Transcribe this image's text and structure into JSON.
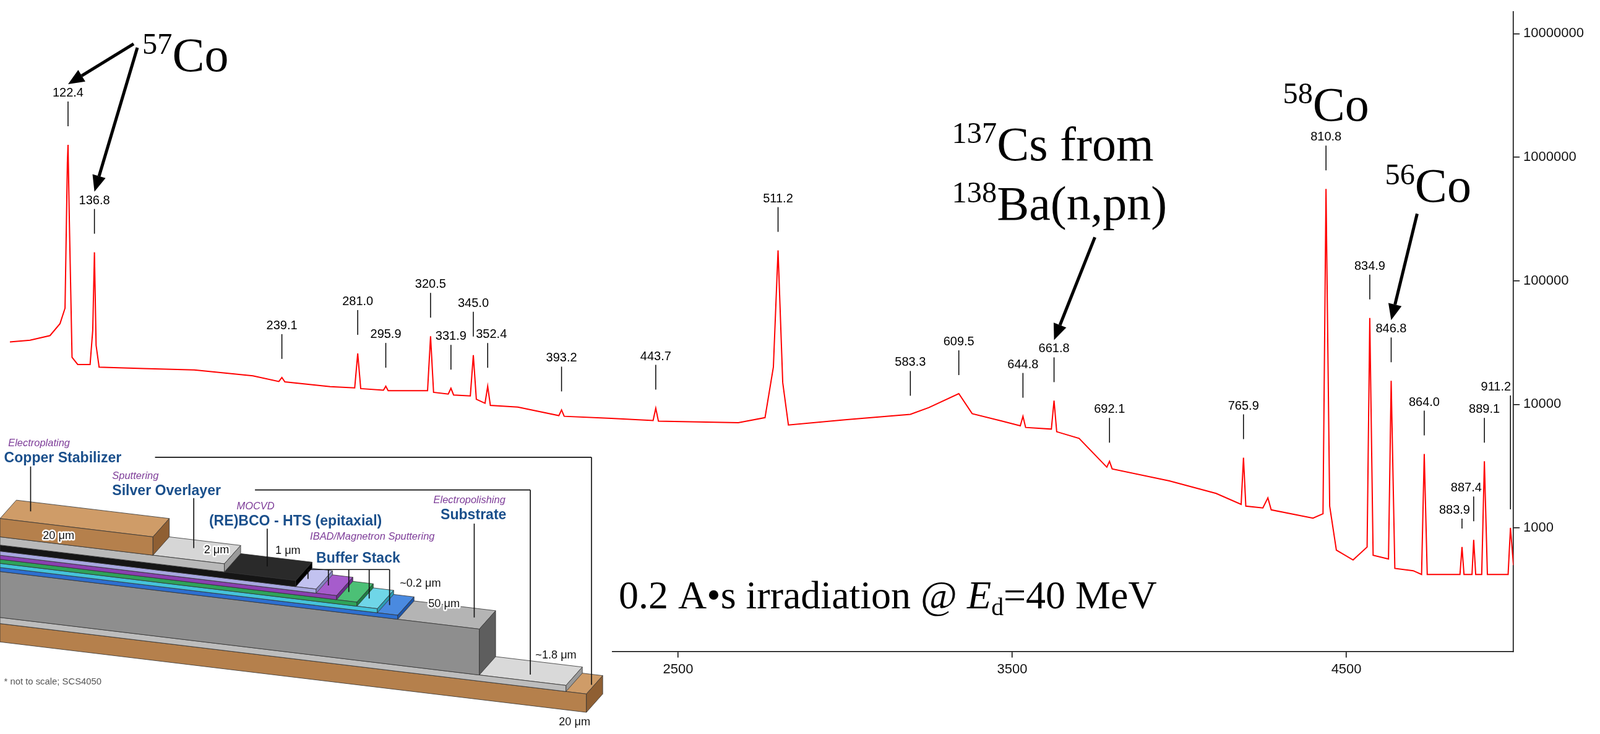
{
  "chart_data": {
    "type": "line",
    "x": [
      500,
      560,
      620,
      650,
      665,
      672,
      674,
      678,
      686,
      703,
      740,
      748,
      753,
      758,
      767,
      900,
      1052,
      1227,
      1305,
      1314,
      1323,
      1459,
      1532,
      1541,
      1550,
      1618,
      1625,
      1632,
      1750,
      1759,
      1768,
      1812,
      1820,
      1828,
      1878,
      1887,
      1896,
      1922,
      1930,
      1938,
      2020,
      2143,
      2151,
      2159,
      2300,
      2425,
      2433,
      2441,
      2680,
      2760,
      2785,
      2799,
      2813,
      2830,
      3000,
      3195,
      3250,
      3340,
      3380,
      3470,
      3524,
      3532,
      3540,
      3617,
      3625,
      3633,
      3700,
      3783,
      3791,
      3799,
      3970,
      4110,
      4185,
      4192,
      4199,
      4250,
      4265,
      4275,
      4400,
      4430,
      4439,
      4450,
      4470,
      4520,
      4562,
      4570,
      4580,
      4626,
      4634,
      4645,
      4700,
      4725,
      4733,
      4742,
      4800,
      4840,
      4846,
      4852,
      4876,
      4881,
      4887,
      4905,
      4913,
      4922,
      4984,
      4991,
      5000
    ],
    "values": [
      32000,
      33000,
      36000,
      45000,
      60000,
      900000,
      1260000,
      300000,
      24000,
      21000,
      21000,
      40000,
      170000,
      30000,
      20000,
      19500,
      19000,
      17000,
      15300,
      16500,
      15200,
      13900,
      13600,
      25800,
      13400,
      13000,
      14000,
      12900,
      12900,
      35600,
      12500,
      12100,
      13500,
      11900,
      11700,
      25000,
      11000,
      10200,
      14000,
      9800,
      9500,
      8100,
      9000,
      8000,
      7700,
      7400,
      9300,
      7300,
      7100,
      7800,
      20000,
      176000,
      15000,
      6800,
      7500,
      8300,
      9400,
      12200,
      8400,
      7300,
      6700,
      8000,
      6500,
      6300,
      10700,
      6000,
      5300,
      3100,
      3460,
      3000,
      2400,
      1900,
      1550,
      3700,
      1500,
      1450,
      1750,
      1400,
      1200,
      1300,
      553000,
      1500,
      660,
      550,
      700,
      50000,
      600,
      560,
      15500,
      470,
      450,
      420,
      3960,
      420,
      420,
      420,
      700,
      420,
      420,
      800,
      420,
      420,
      3460,
      420,
      420,
      1000,
      500
    ],
    "color": "#ff0000",
    "xlim": [
      500,
      5000
    ],
    "xticks": [
      2500,
      3500,
      4500
    ],
    "ylim": [
      100,
      15000000
    ],
    "yticks": [
      1000,
      10000,
      100000,
      1000000,
      10000000
    ],
    "log": "y",
    "grid": false,
    "peak_labels": [
      {
        "x": 674,
        "text": "122.4"
      },
      {
        "x": 753,
        "text": "136.8"
      },
      {
        "x": 1314,
        "text": "239.1"
      },
      {
        "x": 1541,
        "text": "281.0"
      },
      {
        "x": 1625,
        "text": "295.9"
      },
      {
        "x": 1759,
        "text": "320.5"
      },
      {
        "x": 1820,
        "text": "331.9"
      },
      {
        "x": 1887,
        "text": "345.0"
      },
      {
        "x": 1930,
        "text": "352.4"
      },
      {
        "x": 2151,
        "text": "393.2"
      },
      {
        "x": 2433,
        "text": "443.7"
      },
      {
        "x": 2799,
        "text": "511.2"
      },
      {
        "x": 3195,
        "text": "583.3"
      },
      {
        "x": 3340,
        "text": "609.5"
      },
      {
        "x": 3532,
        "text": "644.8"
      },
      {
        "x": 3625,
        "text": "661.8"
      },
      {
        "x": 3791,
        "text": "692.1"
      },
      {
        "x": 4192,
        "text": "765.9"
      },
      {
        "x": 4439,
        "text": "810.8"
      },
      {
        "x": 4570,
        "text": "834.9"
      },
      {
        "x": 4634,
        "text": "846.8"
      },
      {
        "x": 4733,
        "text": "864.0"
      },
      {
        "x": 4846,
        "text": "883.9"
      },
      {
        "x": 4881,
        "text": "887.4"
      },
      {
        "x": 4913,
        "text": "889.1"
      },
      {
        "x": 4991,
        "text": "911.2"
      }
    ],
    "annotations": [
      {
        "lines": [
          "57Co"
        ],
        "arrow_to": [
          "122.4",
          "136.8"
        ]
      },
      {
        "lines": [
          "137Cs from",
          "138Ba(n,pn)"
        ],
        "arrow_to": [
          "661.8"
        ]
      },
      {
        "lines": [
          "58Co"
        ],
        "above": "810.8"
      },
      {
        "lines": [
          "56Co"
        ],
        "arrow_to": [
          "846.8"
        ]
      },
      {
        "lines": [
          "0.2 A•s irradiation @ Ed=40 MeV"
        ]
      }
    ]
  },
  "inset": {
    "layers": [
      {
        "process": "Electroplating",
        "name": "Copper Stabilizer",
        "thickness": "20 μm"
      },
      {
        "process": "Sputtering",
        "name": "Silver Overlayer",
        "thickness": "2 μm"
      },
      {
        "process": "MOCVD",
        "name": "(RE)BCO - HTS (epitaxial)",
        "thickness": "1 μm"
      },
      {
        "process": "IBAD/Magnetron Sputtering",
        "name": "Buffer Stack",
        "thickness": "~0.2 μm"
      },
      {
        "process": "Electropolishing",
        "name": "Substrate",
        "thickness": "50 μm"
      }
    ],
    "bottom_thicknesses": [
      "~1.8 μm",
      "20 μm"
    ],
    "note": "* not to scale; SCS4050"
  }
}
